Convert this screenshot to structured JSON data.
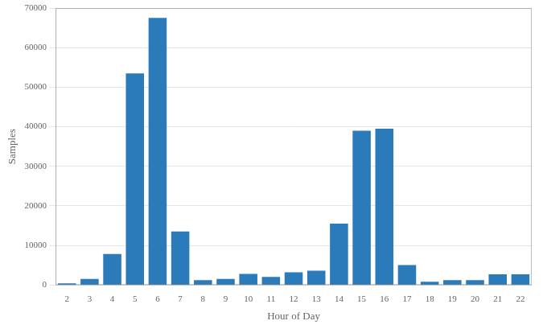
{
  "chart_data": {
    "type": "bar",
    "x": [
      2,
      3,
      4,
      5,
      6,
      7,
      8,
      9,
      10,
      11,
      12,
      13,
      14,
      15,
      16,
      17,
      18,
      19,
      20,
      21,
      22
    ],
    "values": [
      400,
      1500,
      7800,
      53500,
      67500,
      13500,
      1200,
      1500,
      2800,
      2000,
      3200,
      3600,
      15500,
      39000,
      39500,
      5000,
      800,
      1200,
      1200,
      2700,
      2700
    ],
    "color": "#2b7bba",
    "xlabel": "Hour of Day",
    "ylabel": "Samples",
    "xlim": [
      1.5,
      22.5
    ],
    "xticks": [
      2,
      3,
      4,
      5,
      6,
      7,
      8,
      9,
      10,
      11,
      12,
      13,
      14,
      15,
      16,
      17,
      18,
      19,
      20,
      21,
      22
    ],
    "ylim": [
      0,
      70000
    ],
    "yticks": [
      0,
      10000,
      20000,
      30000,
      40000,
      50000,
      60000,
      70000
    ],
    "grid": "y"
  }
}
